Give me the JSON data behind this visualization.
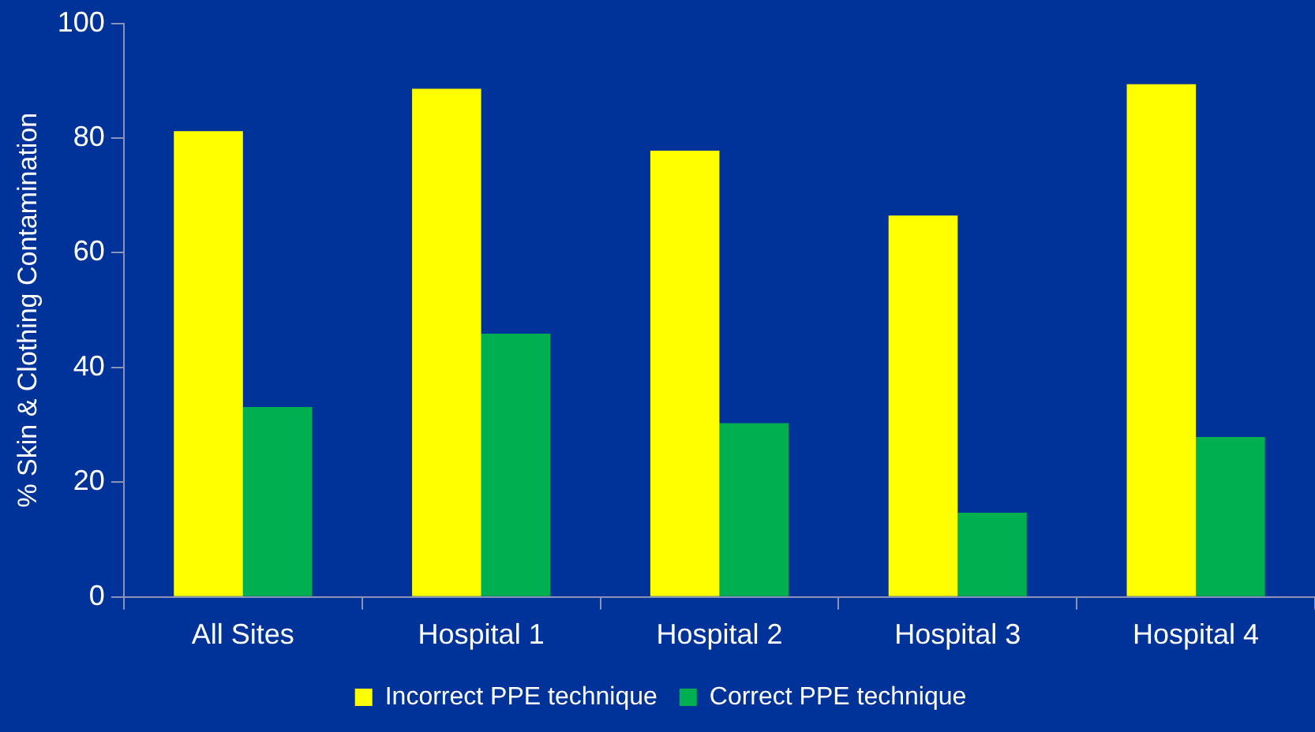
{
  "chart_data": {
    "type": "bar",
    "ylabel": "% Skin & Clothing Contamination",
    "categories": [
      "All Sites",
      "Hospital 1",
      "Hospital 2",
      "Hospital 3",
      "Hospital 4"
    ],
    "series": [
      {
        "name": "Incorrect PPE technique",
        "color": "#ffff00",
        "values": [
          81.2,
          88.6,
          77.8,
          66.5,
          89.4
        ]
      },
      {
        "name": "Correct PPE technique",
        "color": "#00b050",
        "values": [
          33.1,
          45.9,
          30.3,
          14.7,
          27.9
        ]
      }
    ],
    "ylim": [
      0,
      100
    ],
    "yticks": [
      0,
      20,
      40,
      60,
      80,
      100
    ],
    "grid": false,
    "legend": "bottom"
  }
}
